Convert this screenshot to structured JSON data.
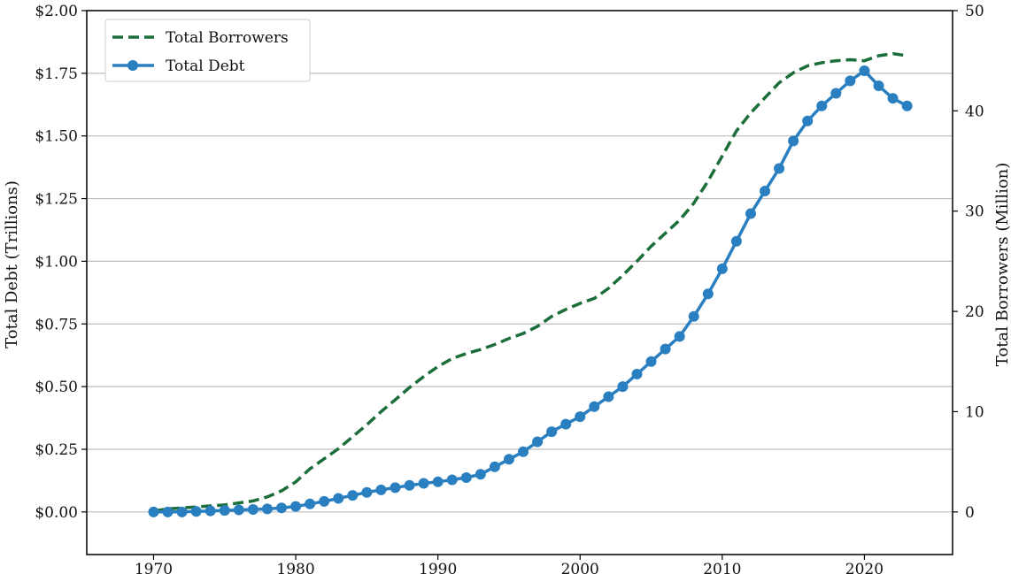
{
  "chart_data": {
    "type": "line",
    "title": "",
    "xlabel": "",
    "ylabel_left": "Total Debt (Trillions)",
    "ylabel_right": "Total Borrowers (Million)",
    "xlim": [
      1965.3,
      2026.2
    ],
    "ylim_left": [
      -0.17,
      2.0
    ],
    "ylim_right": [
      -4.25,
      50
    ],
    "x_ticks": [
      1970,
      1980,
      1990,
      2000,
      2010,
      2020
    ],
    "x_tick_labels": [
      "1970",
      "1980",
      "1990",
      "2000",
      "2010",
      "2020"
    ],
    "y_left_ticks": [
      0,
      0.25,
      0.5,
      0.75,
      1.0,
      1.25,
      1.5,
      1.75,
      2.0
    ],
    "y_left_tick_labels": [
      "$0.00",
      "$0.25",
      "$0.50",
      "$0.75",
      "$1.00",
      "$1.25",
      "$1.50",
      "$1.75",
      "$2.00"
    ],
    "y_right_ticks": [
      0,
      10,
      20,
      30,
      40,
      50
    ],
    "y_right_tick_labels": [
      "0",
      "10",
      "20",
      "30",
      "40",
      "50"
    ],
    "grid": "horizontal",
    "legend_position": "top-left",
    "series": [
      {
        "name": "Total Borrowers",
        "axis": "right",
        "style": "dashed",
        "color": "#1b6e3a",
        "x": [
          1970,
          1971,
          1972,
          1973,
          1974,
          1975,
          1976,
          1977,
          1978,
          1979,
          1980,
          1981,
          1982,
          1983,
          1984,
          1985,
          1986,
          1987,
          1988,
          1989,
          1990,
          1991,
          1992,
          1993,
          1994,
          1995,
          1996,
          1997,
          1998,
          1999,
          2000,
          2001,
          2002,
          2003,
          2004,
          2005,
          2006,
          2007,
          2008,
          2009,
          2010,
          2011,
          2012,
          2013,
          2014,
          2015,
          2016,
          2017,
          2018,
          2019,
          2020,
          2021,
          2022,
          2023
        ],
        "values": [
          0.1,
          0.3,
          0.4,
          0.5,
          0.6,
          0.7,
          0.9,
          1.1,
          1.5,
          2.1,
          3.0,
          4.3,
          5.3,
          6.3,
          7.5,
          8.7,
          10.0,
          11.2,
          12.4,
          13.5,
          14.5,
          15.3,
          15.8,
          16.2,
          16.7,
          17.3,
          17.8,
          18.5,
          19.5,
          20.2,
          20.8,
          21.3,
          22.3,
          23.6,
          25.0,
          26.5,
          27.8,
          29.1,
          30.8,
          33.0,
          35.5,
          38.0,
          39.8,
          41.3,
          42.8,
          43.8,
          44.5,
          44.8,
          45.0,
          45.1,
          45.0,
          45.5,
          45.7,
          45.5
        ]
      },
      {
        "name": "Total Debt",
        "axis": "left",
        "style": "solid-markers",
        "color": "#2a7fc1",
        "x": [
          1970,
          1971,
          1972,
          1973,
          1974,
          1975,
          1976,
          1977,
          1978,
          1979,
          1980,
          1981,
          1982,
          1983,
          1984,
          1985,
          1986,
          1987,
          1988,
          1989,
          1990,
          1991,
          1992,
          1993,
          1994,
          1995,
          1996,
          1997,
          1998,
          1999,
          2000,
          2001,
          2002,
          2003,
          2004,
          2005,
          2006,
          2007,
          2008,
          2009,
          2010,
          2011,
          2012,
          2013,
          2014,
          2015,
          2016,
          2017,
          2018,
          2019,
          2020,
          2021,
          2022,
          2023
        ],
        "values": [
          0.0,
          0.0,
          0.0,
          0.002,
          0.004,
          0.006,
          0.008,
          0.01,
          0.012,
          0.016,
          0.022,
          0.032,
          0.042,
          0.054,
          0.066,
          0.078,
          0.088,
          0.097,
          0.106,
          0.114,
          0.12,
          0.128,
          0.137,
          0.15,
          0.18,
          0.21,
          0.24,
          0.28,
          0.32,
          0.35,
          0.38,
          0.42,
          0.46,
          0.5,
          0.55,
          0.6,
          0.65,
          0.7,
          0.78,
          0.87,
          0.97,
          1.08,
          1.19,
          1.28,
          1.37,
          1.48,
          1.56,
          1.62,
          1.67,
          1.72,
          1.76,
          1.7,
          1.65,
          1.62
        ]
      }
    ]
  }
}
